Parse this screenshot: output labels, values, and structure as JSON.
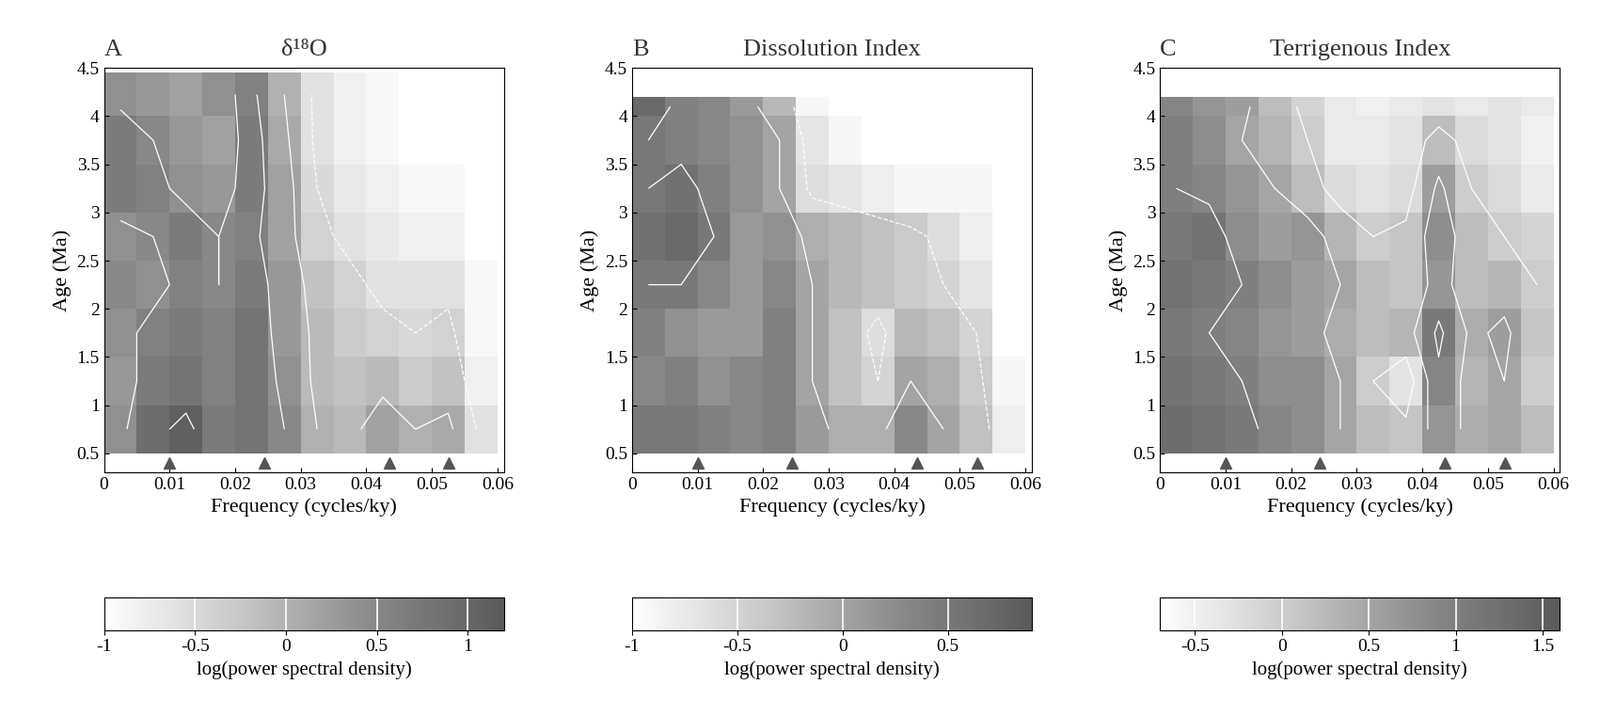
{
  "chart_data": [
    {
      "type": "heatmap",
      "panel": "A",
      "title": "δ¹⁸O",
      "x_label": "Frequency (cycles/ky)",
      "y_label": "Age (Ma)",
      "xlim": [
        0,
        0.061
      ],
      "ylim": [
        0.3,
        4.5
      ],
      "xticks": [
        0,
        0.01,
        0.02,
        0.03,
        0.04,
        0.05,
        0.06
      ],
      "yticks": [
        0.5,
        1,
        1.5,
        2,
        2.5,
        3,
        3.5,
        4,
        4.5
      ],
      "markers_x": [
        0.01,
        0.0244,
        0.0435,
        0.0526
      ],
      "x_edges": [
        0,
        0.005,
        0.01,
        0.015,
        0.02,
        0.025,
        0.03,
        0.035,
        0.04,
        0.045,
        0.05,
        0.055,
        0.06
      ],
      "y_edges": [
        0.5,
        1,
        1.5,
        2,
        2.5,
        3,
        3.5,
        4,
        4.45
      ],
      "cells": [
        [
          0.4,
          0.9,
          1.1,
          0.7,
          0.8,
          0.5,
          0.0,
          -0.1,
          0.2,
          0.0,
          0.1,
          -0.6
        ],
        [
          0.3,
          0.7,
          0.8,
          0.6,
          0.8,
          0.4,
          -0.1,
          -0.2,
          -0.1,
          -0.3,
          -0.2,
          -0.8
        ],
        [
          0.4,
          0.6,
          0.7,
          0.6,
          0.8,
          0.3,
          -0.1,
          -0.3,
          -0.4,
          -0.5,
          -0.4,
          -0.9
        ],
        [
          0.5,
          0.4,
          0.6,
          0.5,
          0.7,
          0.3,
          -0.2,
          -0.4,
          -0.6,
          -0.6,
          -0.6,
          -0.9
        ],
        [
          0.4,
          0.5,
          0.7,
          0.5,
          0.6,
          0.2,
          -0.4,
          -0.6,
          -0.7,
          -0.8,
          -0.8,
          -1.0
        ],
        [
          0.7,
          0.6,
          0.4,
          0.3,
          0.7,
          0.2,
          -0.5,
          -0.7,
          -0.8,
          -0.9,
          -0.9,
          -1.0
        ],
        [
          0.7,
          0.5,
          0.3,
          0.2,
          0.7,
          0.1,
          -0.6,
          -0.8,
          -0.9,
          -1.0,
          -1.0,
          -1.0
        ],
        [
          0.4,
          0.3,
          0.2,
          0.4,
          0.6,
          0.0,
          -0.6,
          -0.8,
          -0.9,
          -1.0,
          -1.0,
          -1.0
        ]
      ],
      "colorbar": {
        "label": "log(power spectral density)",
        "range": [
          -1,
          1.2
        ],
        "ticks": [
          -1,
          -0.5,
          0,
          0.5,
          1
        ]
      }
    },
    {
      "type": "heatmap",
      "panel": "B",
      "title": "Dissolution Index",
      "x_label": "Frequency (cycles/ky)",
      "y_label": "Age (Ma)",
      "xlim": [
        0,
        0.061
      ],
      "ylim": [
        0.3,
        4.5
      ],
      "xticks": [
        0,
        0.01,
        0.02,
        0.03,
        0.04,
        0.05,
        0.06
      ],
      "yticks": [
        0.5,
        1,
        1.5,
        2,
        2.5,
        3,
        3.5,
        4,
        4.5
      ],
      "markers_x": [
        0.01,
        0.0244,
        0.0435,
        0.0526
      ],
      "x_edges": [
        0,
        0.005,
        0.01,
        0.015,
        0.02,
        0.025,
        0.03,
        0.035,
        0.04,
        0.045,
        0.05,
        0.055,
        0.06
      ],
      "y_edges": [
        0.5,
        1,
        1.5,
        2,
        2.5,
        3,
        3.5,
        4,
        4.2
      ],
      "cells": [
        [
          0.5,
          0.5,
          0.4,
          0.3,
          0.4,
          0.1,
          -0.1,
          -0.1,
          0.3,
          0.0,
          -0.3,
          -0.8
        ],
        [
          0.3,
          0.4,
          0.2,
          0.3,
          0.4,
          0.0,
          -0.3,
          -0.5,
          0.0,
          -0.1,
          -0.4,
          -0.9
        ],
        [
          0.4,
          0.2,
          0.1,
          0.1,
          0.4,
          0.0,
          -0.3,
          -0.6,
          -0.2,
          -0.3,
          -0.5,
          -1.0
        ],
        [
          0.5,
          0.5,
          0.3,
          0.1,
          0.3,
          0.0,
          -0.2,
          -0.3,
          -0.4,
          -0.5,
          -0.7,
          -1.0
        ],
        [
          0.6,
          0.7,
          0.5,
          0.1,
          0.2,
          -0.1,
          -0.2,
          -0.3,
          -0.4,
          -0.6,
          -0.8,
          -1.0
        ],
        [
          0.5,
          0.6,
          0.4,
          0.2,
          0.0,
          -0.6,
          -0.7,
          -0.8,
          -0.9,
          -0.9,
          -0.9,
          -1.0
        ],
        [
          0.5,
          0.4,
          0.3,
          0.2,
          0.0,
          -0.7,
          -0.9,
          -1.0,
          -1.0,
          -1.0,
          -1.0,
          -1.0
        ],
        [
          0.7,
          0.4,
          0.3,
          0.1,
          -0.2,
          -0.9,
          -1.0,
          -1.0,
          -1.0,
          -1.0,
          -1.0,
          -1.0
        ]
      ],
      "colorbar": {
        "label": "log(power spectral density)",
        "range": [
          -1,
          0.9
        ],
        "ticks": [
          -1,
          -0.5,
          0,
          0.5
        ]
      }
    },
    {
      "type": "heatmap",
      "panel": "C",
      "title": "Terrigenous Index",
      "x_label": "Frequency (cycles/ky)",
      "y_label": "Age (Ma)",
      "xlim": [
        0,
        0.061
      ],
      "ylim": [
        0.3,
        4.5
      ],
      "xticks": [
        0,
        0.01,
        0.02,
        0.03,
        0.04,
        0.05,
        0.06
      ],
      "yticks": [
        0.5,
        1,
        1.5,
        2,
        2.5,
        3,
        3.5,
        4,
        4.5
      ],
      "markers_x": [
        0.01,
        0.0244,
        0.0435,
        0.0526
      ],
      "x_edges": [
        0,
        0.005,
        0.01,
        0.015,
        0.02,
        0.025,
        0.03,
        0.035,
        0.04,
        0.045,
        0.05,
        0.055,
        0.06
      ],
      "y_edges": [
        0.5,
        1,
        1.5,
        2,
        2.5,
        3,
        3.5,
        4,
        4.2
      ],
      "cells": [
        [
          1.3,
          1.2,
          1.1,
          0.9,
          0.8,
          0.5,
          0.2,
          0.1,
          0.7,
          0.4,
          0.5,
          0.2
        ],
        [
          1.2,
          1.1,
          1.0,
          0.8,
          0.8,
          0.5,
          0.0,
          -0.3,
          0.9,
          0.3,
          0.5,
          0.0
        ],
        [
          1.1,
          1.0,
          0.9,
          0.7,
          0.6,
          0.4,
          0.2,
          0.3,
          1.1,
          0.4,
          0.6,
          0.1
        ],
        [
          1.2,
          1.1,
          1.0,
          0.8,
          0.6,
          0.5,
          0.2,
          0.1,
          0.7,
          0.2,
          0.3,
          0.0
        ],
        [
          1.1,
          1.2,
          0.8,
          0.6,
          0.7,
          0.3,
          0.0,
          0.1,
          0.8,
          0.2,
          0.0,
          -0.1
        ],
        [
          1.0,
          0.9,
          0.7,
          0.5,
          0.2,
          -0.2,
          -0.3,
          -0.2,
          0.6,
          0.0,
          -0.2,
          -0.4
        ],
        [
          1.0,
          0.8,
          0.5,
          0.3,
          0.0,
          -0.4,
          -0.4,
          -0.3,
          0.2,
          -0.2,
          -0.3,
          -0.5
        ],
        [
          0.9,
          0.7,
          0.6,
          0.2,
          -0.1,
          -0.4,
          -0.5,
          -0.4,
          -0.3,
          -0.4,
          -0.3,
          -0.4
        ]
      ],
      "colorbar": {
        "label": "log(power spectral density)",
        "range": [
          -0.7,
          1.6
        ],
        "ticks": [
          -0.5,
          0,
          0.5,
          1,
          1.5
        ]
      }
    }
  ]
}
